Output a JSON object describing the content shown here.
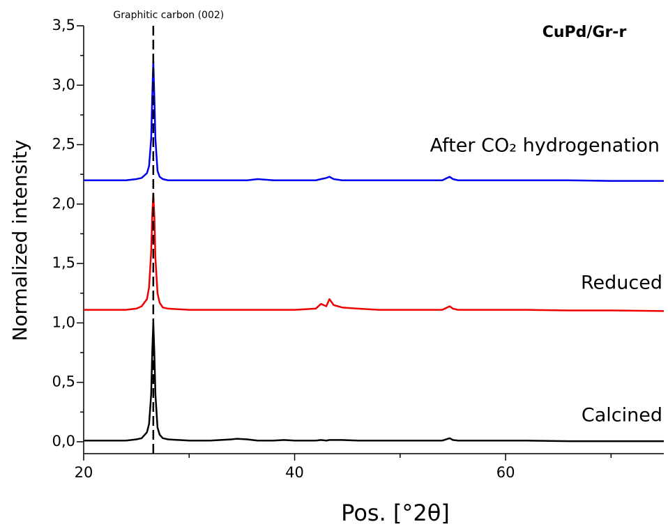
{
  "chart_data": {
    "type": "line",
    "title": "CuPd/Gr-r",
    "x_label": "Pos. [°2θ]",
    "y_label": "Normalized intensity",
    "x": [
      20,
      22,
      24,
      25,
      25.5,
      26,
      26.2,
      26.4,
      26.5,
      26.6,
      26.7,
      26.8,
      27.0,
      27.2,
      27.5,
      28,
      30,
      32,
      34,
      34.5,
      35.5,
      36.5,
      38,
      39,
      40,
      42,
      42.5,
      43,
      43.3,
      43.7,
      44.5,
      46,
      48,
      50,
      52,
      54,
      54.7,
      55,
      55.5,
      58,
      62,
      66,
      70,
      75
    ],
    "series": [
      {
        "name": "Calcined",
        "color": "#000000",
        "values": [
          0.01,
          0.01,
          0.01,
          0.02,
          0.03,
          0.08,
          0.15,
          0.4,
          0.75,
          1.0,
          0.75,
          0.4,
          0.12,
          0.06,
          0.03,
          0.02,
          0.01,
          0.01,
          0.02,
          0.025,
          0.02,
          0.01,
          0.01,
          0.015,
          0.01,
          0.01,
          0.015,
          0.01,
          0.015,
          0.015,
          0.015,
          0.01,
          0.01,
          0.01,
          0.01,
          0.01,
          0.03,
          0.015,
          0.01,
          0.01,
          0.01,
          0.005,
          0.005,
          0.005
        ]
      },
      {
        "name": "Reduced",
        "color": "#ee0000",
        "values": [
          1.11,
          1.11,
          1.11,
          1.12,
          1.14,
          1.2,
          1.3,
          1.6,
          1.9,
          2.09,
          1.9,
          1.55,
          1.25,
          1.17,
          1.13,
          1.12,
          1.11,
          1.11,
          1.11,
          1.11,
          1.11,
          1.11,
          1.11,
          1.11,
          1.11,
          1.12,
          1.16,
          1.14,
          1.2,
          1.15,
          1.13,
          1.12,
          1.11,
          1.11,
          1.11,
          1.11,
          1.14,
          1.12,
          1.11,
          1.11,
          1.11,
          1.105,
          1.105,
          1.1
        ]
      },
      {
        "name": "After CO₂ hydrogenation",
        "color": "#0000ee",
        "values": [
          2.2,
          2.2,
          2.2,
          2.21,
          2.22,
          2.26,
          2.32,
          2.55,
          2.9,
          3.2,
          2.9,
          2.55,
          2.28,
          2.23,
          2.21,
          2.2,
          2.2,
          2.2,
          2.2,
          2.2,
          2.2,
          2.21,
          2.2,
          2.2,
          2.2,
          2.2,
          2.21,
          2.22,
          2.23,
          2.21,
          2.2,
          2.2,
          2.2,
          2.2,
          2.2,
          2.2,
          2.23,
          2.21,
          2.2,
          2.2,
          2.2,
          2.2,
          2.195,
          2.195
        ]
      }
    ],
    "annotations": [
      {
        "text": "Graphitic carbon (002)",
        "x": 26.6
      }
    ],
    "xlim": [
      20,
      75
    ],
    "xticks": [
      20,
      40,
      60
    ],
    "xminor": [
      30,
      50,
      70
    ],
    "ylim": [
      -0.1,
      3.5
    ],
    "yticks": [
      {
        "value": 0,
        "label": "0,0"
      },
      {
        "value": 0.5,
        "label": "0,5"
      },
      {
        "value": 1,
        "label": "1,0"
      },
      {
        "value": 1.5,
        "label": "1,5"
      },
      {
        "value": 2,
        "label": "2,0"
      },
      {
        "value": 2.5,
        "label": "2,5"
      },
      {
        "value": 3,
        "label": "3,0"
      },
      {
        "value": 3.5,
        "label": "3,5"
      }
    ],
    "yminor": [
      0.25,
      0.75,
      1.25,
      1.75,
      2.25,
      2.75,
      3.25
    ],
    "grid": false
  }
}
